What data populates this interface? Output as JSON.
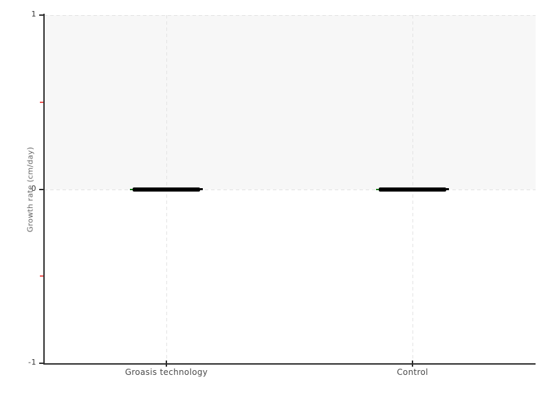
{
  "chart_data": {
    "type": "bar",
    "subtype": "collapsed-box-horizontal-lines",
    "title": "",
    "xlabel": "",
    "ylabel": "Growth rate (cm/day)",
    "categories": [
      "Groasis technology",
      "Control"
    ],
    "values": [
      0,
      0
    ],
    "ylim": [
      -1,
      1
    ],
    "yticks_major": [
      1,
      0,
      -1
    ],
    "ytick_labels": [
      "1",
      "0",
      "-1"
    ],
    "yticks_minor": [
      0.5,
      -0.5
    ],
    "shaded_band": [
      0,
      1
    ],
    "grid": "dashed horizontal lines at y=1 and y=0; dashed vertical lines at each category center",
    "legend": "none",
    "marks_note": "each category shows a thick black horizontal line at y=0 with a small green cap on the left end and a small black nub on the right end"
  },
  "colors": {
    "background": "#ffffff",
    "band_fill": "#f7f7f7",
    "gridline": "#e3e3e3",
    "axis": "#2d2d2d",
    "tick_label": "#333333",
    "category_label": "#4a4a4a",
    "axis_title": "#666666",
    "minor_tick_red": "#ee5350",
    "bar_black": "#000000",
    "left_cap_green": "#167a16"
  }
}
